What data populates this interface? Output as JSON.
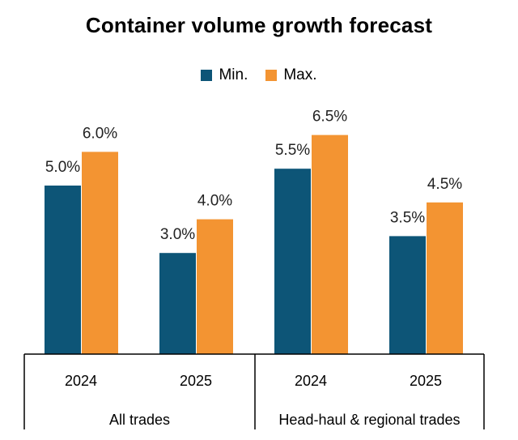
{
  "chart_data": {
    "type": "bar",
    "title": "Container volume growth forecast",
    "categories": [
      "2024",
      "2025",
      "2024",
      "2025"
    ],
    "groups": [
      {
        "label": "All trades",
        "categories": [
          "2024",
          "2025"
        ]
      },
      {
        "label": "Head-haul & regional trades",
        "categories": [
          "2024",
          "2025"
        ]
      }
    ],
    "series": [
      {
        "name": "Min.",
        "color": "#0d5577",
        "values": [
          5.0,
          3.0,
          5.5,
          3.5
        ],
        "labels": [
          "5.0%",
          "3.0%",
          "5.5%",
          "3.5%"
        ]
      },
      {
        "name": "Max.",
        "color": "#f39432",
        "values": [
          6.0,
          4.0,
          6.5,
          4.5
        ],
        "labels": [
          "6.0%",
          "4.0%",
          "6.5%",
          "4.5%"
        ]
      }
    ],
    "ylim": [
      0,
      7
    ],
    "grid": false,
    "legend_position": "top"
  }
}
